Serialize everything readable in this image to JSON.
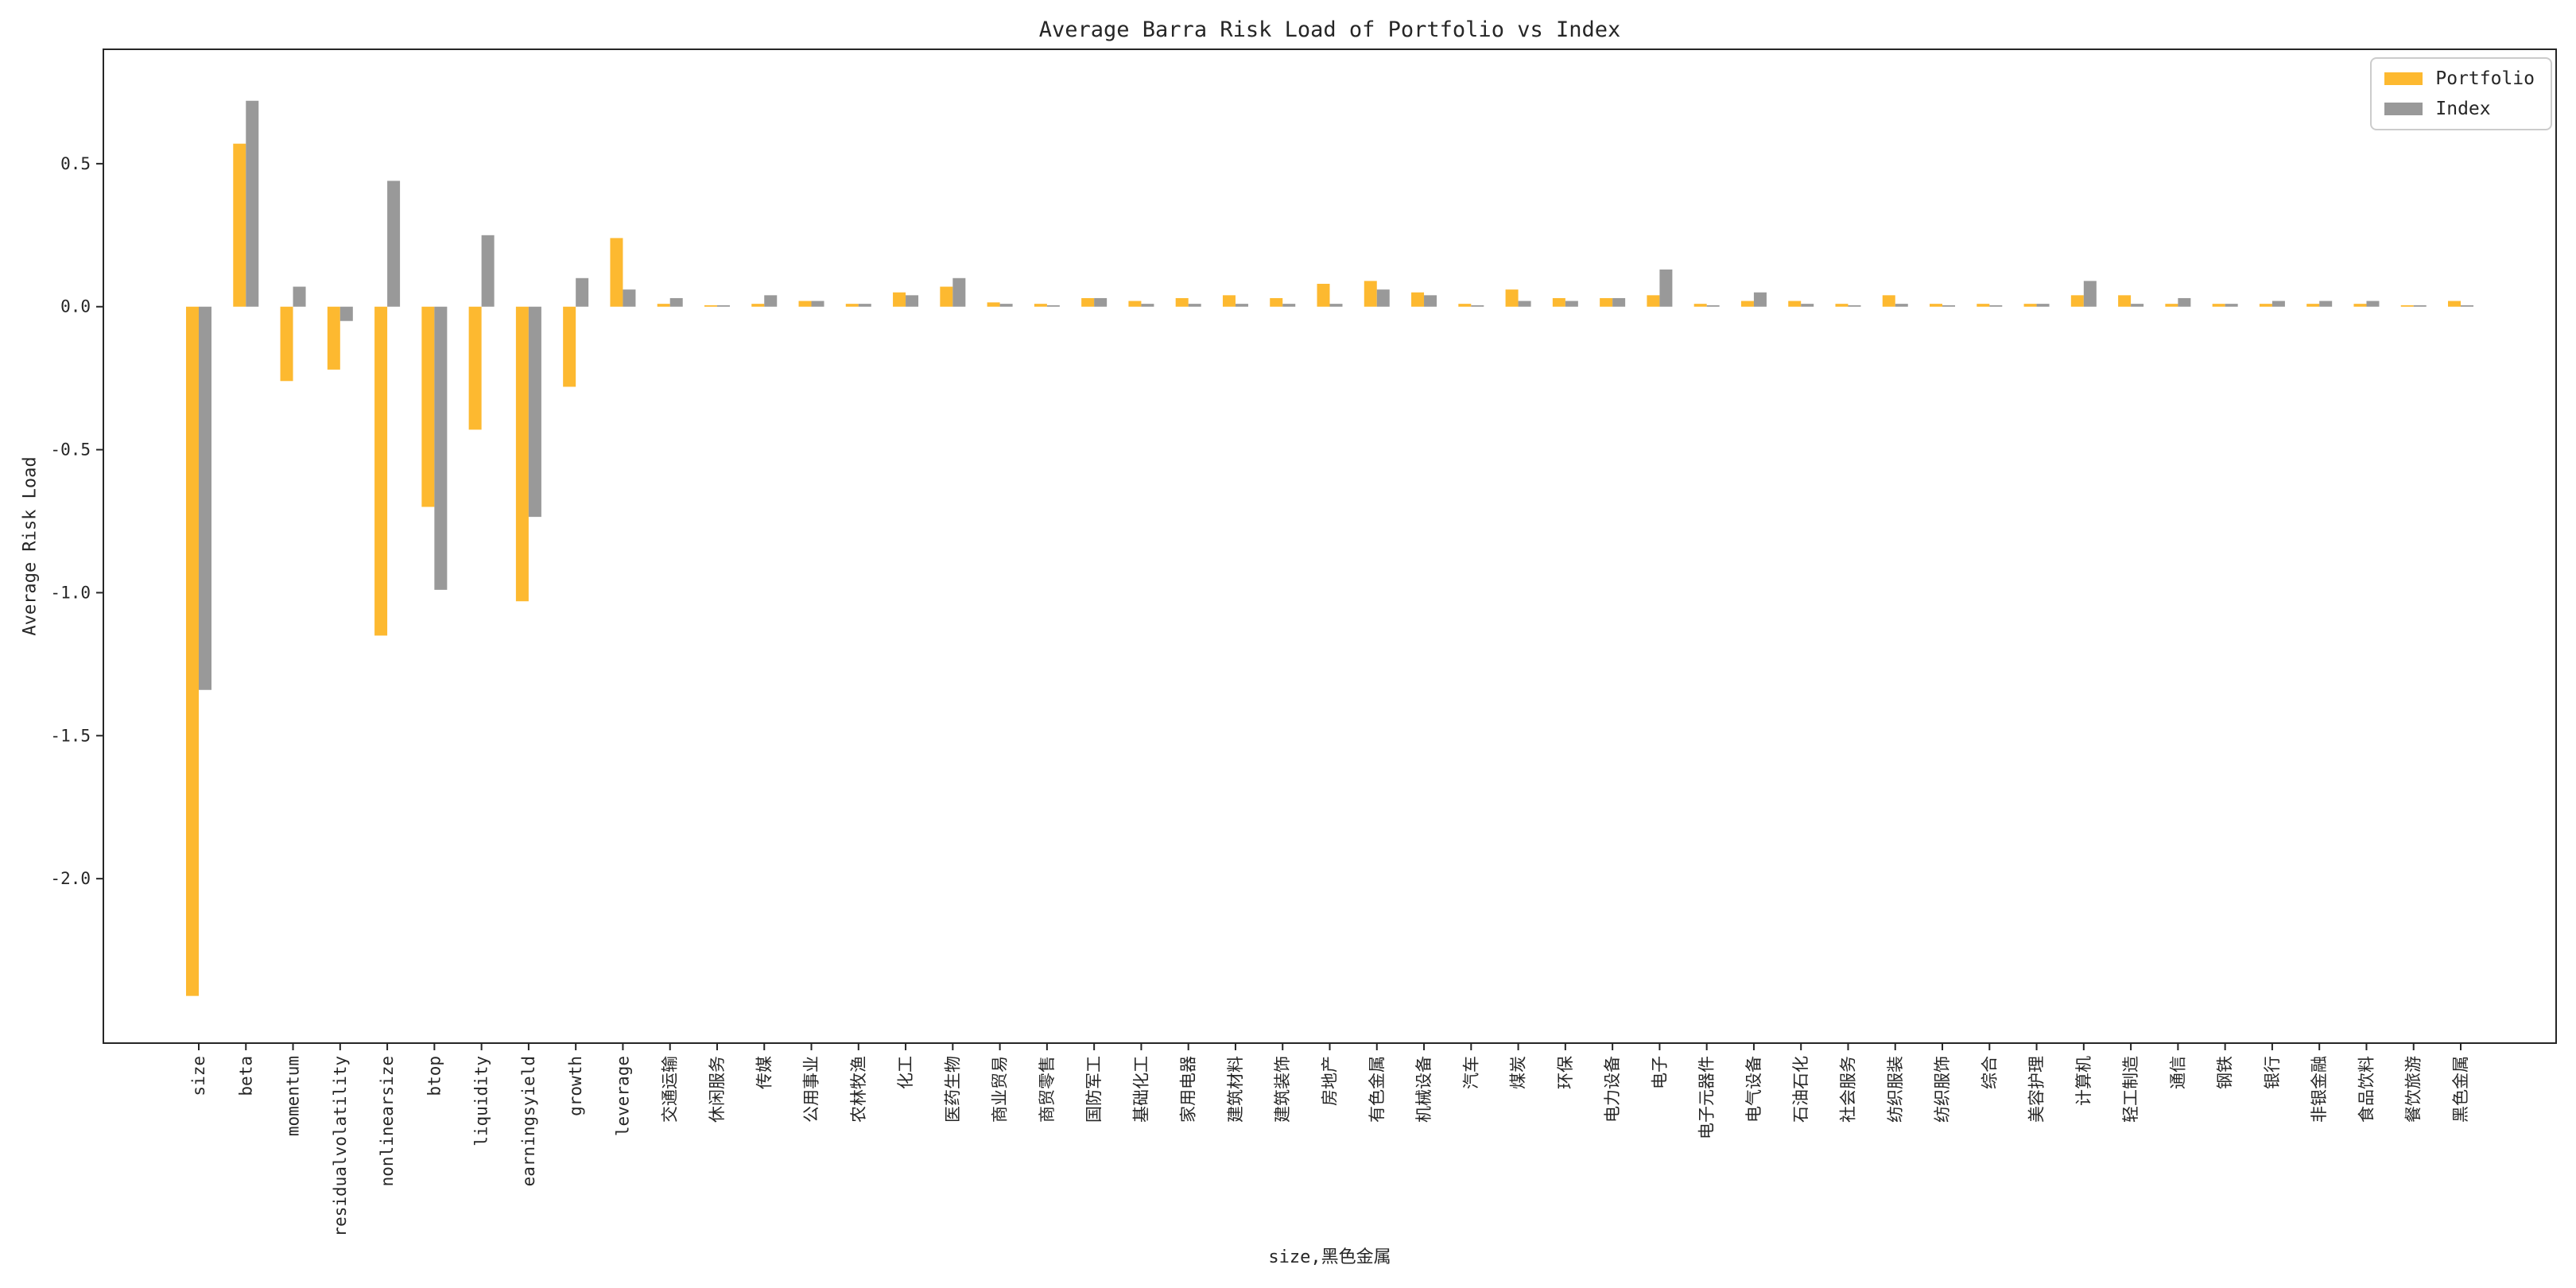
{
  "page": {
    "background": "#ffffff",
    "text_color": "#262626"
  },
  "chart_data": {
    "type": "bar",
    "title": "Average Barra Risk Load of Portfolio vs Index",
    "ylabel": "Average Risk Load",
    "xlabel": "size,黑色金属",
    "grid": false,
    "legend_position": "upper right",
    "ylim": [
      -2.575,
      0.9
    ],
    "yticks": [
      0.5,
      0.0,
      -0.5,
      -1.0,
      -1.5,
      -2.0
    ],
    "categories": [
      "size",
      "beta",
      "momentum",
      "residualvolatility",
      "nonlinearsize",
      "btop",
      "liquidity",
      "earningsyield",
      "growth",
      "leverage",
      "交通运输",
      "休闲服务",
      "传媒",
      "公用事业",
      "农林牧渔",
      "化工",
      "医药生物",
      "商业贸易",
      "商贸零售",
      "国防军工",
      "基础化工",
      "家用电器",
      "建筑材料",
      "建筑装饰",
      "房地产",
      "有色金属",
      "机械设备",
      "汽车",
      "煤炭",
      "环保",
      "电力设备",
      "电子",
      "电子元器件",
      "电气设备",
      "石油石化",
      "社会服务",
      "纺织服装",
      "纺织服饰",
      "综合",
      "美容护理",
      "计算机",
      "轻工制造",
      "通信",
      "钢铁",
      "银行",
      "非银金融",
      "食品饮料",
      "餐饮旅游",
      "黑色金属"
    ],
    "series": [
      {
        "name": "Portfolio",
        "color": "#FDB930",
        "values": [
          -2.41,
          0.57,
          -0.26,
          -0.22,
          -1.15,
          -0.7,
          -0.43,
          -1.03,
          -0.28,
          0.24,
          0.01,
          0.005,
          0.01,
          0.02,
          0.01,
          0.05,
          0.07,
          0.015,
          0.01,
          0.03,
          0.02,
          0.03,
          0.04,
          0.03,
          0.08,
          0.09,
          0.05,
          0.01,
          0.06,
          0.03,
          0.03,
          0.04,
          0.01,
          0.02,
          0.02,
          0.01,
          0.04,
          0.01,
          0.01,
          0.01,
          0.04,
          0.04,
          0.01,
          0.01,
          0.01,
          0.01,
          0.01,
          0.005,
          0.02
        ]
      },
      {
        "name": "Index",
        "color": "#999999",
        "values": [
          -1.34,
          0.72,
          0.07,
          -0.05,
          0.44,
          -0.99,
          0.25,
          -0.735,
          0.1,
          0.06,
          0.03,
          0.005,
          0.04,
          0.02,
          0.01,
          0.04,
          0.1,
          0.01,
          0.005,
          0.03,
          0.01,
          0.01,
          0.01,
          0.01,
          0.01,
          0.06,
          0.04,
          0.005,
          0.02,
          0.02,
          0.03,
          0.13,
          0.005,
          0.05,
          0.01,
          0.005,
          0.01,
          0.005,
          0.005,
          0.01,
          0.09,
          0.01,
          0.03,
          0.01,
          0.02,
          0.02,
          0.02,
          0.005,
          0.005
        ]
      }
    ],
    "axis_color": "#262626",
    "tick_label_fontsize": 21
  }
}
